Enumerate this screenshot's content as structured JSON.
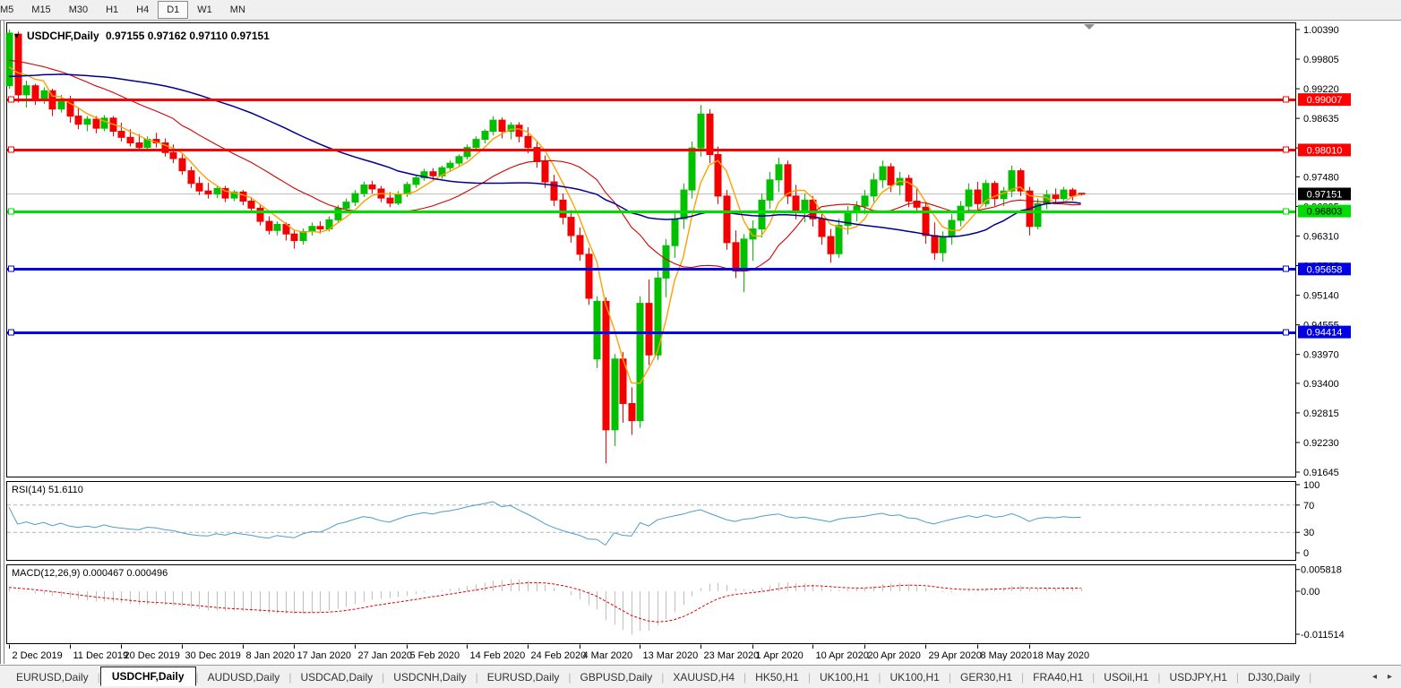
{
  "toolbar": {
    "timeframes": [
      "M5",
      "M15",
      "M30",
      "H1",
      "H4",
      "D1",
      "W1",
      "MN"
    ],
    "active": "D1"
  },
  "chart_header": {
    "arrow": "▼",
    "symbol": "USDCHF,Daily",
    "ohlc": "0.97155 0.97162 0.97110 0.97151"
  },
  "chart_data": {
    "type": "candlestick",
    "symbol": "USDCHF",
    "timeframe": "Daily",
    "ylim": [
      0.91645,
      1.0039
    ],
    "price_ticks": [
      "1.00390",
      "0.99805",
      "0.99220",
      "0.98635",
      "0.98050",
      "0.97480",
      "0.96895",
      "0.96310",
      "0.95725",
      "0.95140",
      "0.94555",
      "0.93970",
      "0.93400",
      "0.92815",
      "0.92230",
      "0.91645"
    ],
    "x_labels": [
      "2 Dec 2019",
      "11 Dec 2019",
      "20 Dec 2019",
      "30 Dec 2019",
      "8 Jan 2020",
      "17 Jan 2020",
      "27 Jan 2020",
      "5 Feb 2020",
      "14 Feb 2020",
      "24 Feb 2020",
      "4 Mar 2020",
      "13 Mar 2020",
      "23 Mar 2020",
      "1 Apr 2020",
      "10 Apr 2020",
      "20 Apr 2020",
      "29 Apr 2020",
      "8 May 2020",
      "18 May 2020"
    ],
    "x_label_indices": [
      0,
      7,
      13,
      20,
      27,
      33,
      40,
      46,
      53,
      60,
      66,
      73,
      80,
      86,
      93,
      99,
      106,
      112,
      118
    ],
    "colors": {
      "up": "#00C000",
      "down": "#F40000",
      "grid_current": "#C0C0C0",
      "frame": "#000000",
      "current_box": "#000000",
      "current_text": "#FFFFFF",
      "shift_marker": "#8C8C8C"
    },
    "hlines": [
      {
        "value": 0.99007,
        "label": "0.99007",
        "color": "#FF0000",
        "text": "#FFFFFF"
      },
      {
        "value": 0.9801,
        "label": "0.98010",
        "color": "#FF0000",
        "text": "#FFFFFF"
      },
      {
        "value": 0.96803,
        "label": "0.96803",
        "color": "#00DD00",
        "text": "#000000"
      },
      {
        "value": 0.95658,
        "label": "0.95658",
        "color": "#0000E6",
        "text": "#FFFFFF"
      },
      {
        "value": 0.94414,
        "label": "0.94414",
        "color": "#0000E6",
        "text": "#FFFFFF"
      }
    ],
    "current_price": {
      "value": 0.97151,
      "label": "0.97151"
    },
    "moving_averages": [
      {
        "period": 5,
        "color": "#FFA000",
        "width": 1.4
      },
      {
        "period": 20,
        "color": "#D50000",
        "width": 1.1
      },
      {
        "period": 45,
        "color": "#000090",
        "width": 1.5
      }
    ],
    "indicators": {
      "rsi": {
        "label": "RSI(14) 51.6110",
        "period": 14,
        "levels": [
          "100",
          "70",
          "30",
          "0"
        ],
        "dashed_levels": [
          70,
          30
        ],
        "line_color": "#4E9BCD"
      },
      "macd": {
        "label": "MACD(12,26,9) 0.000467 0.000496",
        "fast": 12,
        "slow": 26,
        "signal": 9,
        "axis": [
          "0.005818",
          "0.00",
          "-0.011514"
        ],
        "hist_color": "#BFBFBF",
        "signal_color": "#E00000"
      }
    },
    "pre_closes": [
      0.987,
      0.9878,
      0.9885,
      0.9872,
      0.986,
      0.9868,
      0.988,
      0.9892,
      0.9905,
      0.9898,
      0.991,
      0.9922,
      0.9915,
      0.9928,
      0.9935,
      0.9922,
      0.993,
      0.9945,
      0.9938,
      0.9952,
      0.996,
      0.9948,
      0.9955,
      0.9968,
      0.9975,
      0.9962,
      0.997,
      0.9982,
      0.9978,
      0.999,
      0.9985,
      0.9995,
      0.9988,
      0.9998,
      1.0005,
      0.9992,
      0.9985,
      0.9975,
      0.9982,
      0.997,
      0.9958,
      0.9965,
      0.995,
      0.9942,
      0.9935
    ],
    "candles": [
      [
        0.9928,
        1.0039,
        0.9922,
        1.0032
      ],
      [
        1.003,
        1.0035,
        0.9895,
        0.991
      ],
      [
        0.991,
        0.9938,
        0.9885,
        0.9928
      ],
      [
        0.9928,
        0.9932,
        0.989,
        0.99
      ],
      [
        0.99,
        0.9925,
        0.9892,
        0.9918
      ],
      [
        0.9918,
        0.9922,
        0.9868,
        0.9882
      ],
      [
        0.9882,
        0.991,
        0.9875,
        0.9902
      ],
      [
        0.9902,
        0.9908,
        0.9855,
        0.9868
      ],
      [
        0.9868,
        0.9885,
        0.9842,
        0.9852
      ],
      [
        0.9852,
        0.9868,
        0.9838,
        0.9862
      ],
      [
        0.9862,
        0.9868,
        0.9834,
        0.9844
      ],
      [
        0.9844,
        0.987,
        0.9838,
        0.9864
      ],
      [
        0.9864,
        0.9868,
        0.9828,
        0.9838
      ],
      [
        0.9838,
        0.9855,
        0.9818,
        0.9826
      ],
      [
        0.9826,
        0.9842,
        0.9808,
        0.9815
      ],
      [
        0.9815,
        0.9832,
        0.9798,
        0.9806
      ],
      [
        0.9806,
        0.9828,
        0.98,
        0.9822
      ],
      [
        0.9822,
        0.9835,
        0.9806,
        0.9815
      ],
      [
        0.9815,
        0.9824,
        0.9788,
        0.9796
      ],
      [
        0.9796,
        0.9812,
        0.9775,
        0.9784
      ],
      [
        0.9784,
        0.9792,
        0.9752,
        0.976
      ],
      [
        0.976,
        0.9768,
        0.9726,
        0.9735
      ],
      [
        0.9735,
        0.9748,
        0.9712,
        0.972
      ],
      [
        0.972,
        0.9736,
        0.9705,
        0.9714
      ],
      [
        0.9714,
        0.973,
        0.9706,
        0.9725
      ],
      [
        0.9725,
        0.973,
        0.9698,
        0.9706
      ],
      [
        0.9706,
        0.9722,
        0.97,
        0.9718
      ],
      [
        0.9718,
        0.9722,
        0.9692,
        0.97
      ],
      [
        0.97,
        0.9708,
        0.9678,
        0.9686
      ],
      [
        0.9686,
        0.9694,
        0.9652,
        0.966
      ],
      [
        0.966,
        0.967,
        0.9634,
        0.9642
      ],
      [
        0.9642,
        0.966,
        0.9632,
        0.9654
      ],
      [
        0.9654,
        0.9658,
        0.9622,
        0.9635
      ],
      [
        0.9635,
        0.9642,
        0.9606,
        0.9622
      ],
      [
        0.9622,
        0.9646,
        0.9614,
        0.964
      ],
      [
        0.964,
        0.9658,
        0.9632,
        0.965
      ],
      [
        0.965,
        0.966,
        0.9636,
        0.9645
      ],
      [
        0.9645,
        0.967,
        0.964,
        0.9663
      ],
      [
        0.9663,
        0.9692,
        0.9656,
        0.9686
      ],
      [
        0.9686,
        0.9705,
        0.9678,
        0.9698
      ],
      [
        0.9698,
        0.9722,
        0.969,
        0.9715
      ],
      [
        0.9715,
        0.9738,
        0.9708,
        0.9732
      ],
      [
        0.9732,
        0.974,
        0.9715,
        0.9724
      ],
      [
        0.9724,
        0.973,
        0.9698,
        0.9706
      ],
      [
        0.9706,
        0.9718,
        0.9688,
        0.9696
      ],
      [
        0.9696,
        0.972,
        0.9692,
        0.9714
      ],
      [
        0.9714,
        0.9738,
        0.9708,
        0.9733
      ],
      [
        0.9733,
        0.9752,
        0.9726,
        0.9746
      ],
      [
        0.9746,
        0.9764,
        0.974,
        0.9758
      ],
      [
        0.9758,
        0.9765,
        0.9742,
        0.975
      ],
      [
        0.975,
        0.977,
        0.9744,
        0.9766
      ],
      [
        0.9766,
        0.978,
        0.9758,
        0.9775
      ],
      [
        0.9775,
        0.9792,
        0.9768,
        0.9788
      ],
      [
        0.9788,
        0.9812,
        0.9782,
        0.9806
      ],
      [
        0.9806,
        0.9828,
        0.9799,
        0.9822
      ],
      [
        0.9822,
        0.9842,
        0.9814,
        0.9838
      ],
      [
        0.9838,
        0.9868,
        0.983,
        0.986
      ],
      [
        0.986,
        0.9865,
        0.9824,
        0.9838
      ],
      [
        0.9838,
        0.9856,
        0.9822,
        0.985
      ],
      [
        0.985,
        0.9856,
        0.9816,
        0.9828
      ],
      [
        0.9828,
        0.9846,
        0.9795,
        0.9806
      ],
      [
        0.9806,
        0.9818,
        0.9766,
        0.9778
      ],
      [
        0.9778,
        0.979,
        0.9726,
        0.9738
      ],
      [
        0.9738,
        0.9752,
        0.969,
        0.9702
      ],
      [
        0.9702,
        0.9715,
        0.9654,
        0.9668
      ],
      [
        0.9668,
        0.9682,
        0.9618,
        0.9632
      ],
      [
        0.9632,
        0.9648,
        0.9582,
        0.9595
      ],
      [
        0.9595,
        0.9608,
        0.9495,
        0.9508
      ],
      [
        0.9388,
        0.9512,
        0.937,
        0.9502
      ],
      [
        0.9502,
        0.951,
        0.9182,
        0.9248
      ],
      [
        0.9248,
        0.9398,
        0.9216,
        0.9388
      ],
      [
        0.9388,
        0.9402,
        0.9262,
        0.93
      ],
      [
        0.93,
        0.9332,
        0.9238,
        0.9266
      ],
      [
        0.9266,
        0.9512,
        0.9252,
        0.9498
      ],
      [
        0.9498,
        0.9545,
        0.9376,
        0.9396
      ],
      [
        0.9396,
        0.9562,
        0.9386,
        0.9548
      ],
      [
        0.9548,
        0.9625,
        0.951,
        0.9612
      ],
      [
        0.9612,
        0.9682,
        0.9588,
        0.9665
      ],
      [
        0.9665,
        0.9735,
        0.9645,
        0.9722
      ],
      [
        0.9722,
        0.9818,
        0.9705,
        0.9805
      ],
      [
        0.9805,
        0.989,
        0.9788,
        0.9872
      ],
      [
        0.9872,
        0.9882,
        0.9775,
        0.9792
      ],
      [
        0.9792,
        0.9808,
        0.9694,
        0.971
      ],
      [
        0.971,
        0.9722,
        0.9604,
        0.9618
      ],
      [
        0.9618,
        0.9642,
        0.9548,
        0.9562
      ],
      [
        0.9562,
        0.9635,
        0.952,
        0.9625
      ],
      [
        0.9625,
        0.9662,
        0.9582,
        0.9645
      ],
      [
        0.9645,
        0.9715,
        0.9628,
        0.9702
      ],
      [
        0.9702,
        0.9758,
        0.9685,
        0.9742
      ],
      [
        0.9742,
        0.9786,
        0.9718,
        0.9772
      ],
      [
        0.9772,
        0.978,
        0.9694,
        0.971
      ],
      [
        0.971,
        0.9732,
        0.9664,
        0.968
      ],
      [
        0.968,
        0.9715,
        0.9658,
        0.9702
      ],
      [
        0.9702,
        0.971,
        0.965,
        0.9665
      ],
      [
        0.9665,
        0.9678,
        0.9614,
        0.963
      ],
      [
        0.963,
        0.9645,
        0.9578,
        0.9596
      ],
      [
        0.9596,
        0.9665,
        0.9588,
        0.9652
      ],
      [
        0.9652,
        0.969,
        0.9634,
        0.9678
      ],
      [
        0.9678,
        0.97,
        0.966,
        0.969
      ],
      [
        0.969,
        0.9722,
        0.9674,
        0.971
      ],
      [
        0.971,
        0.9755,
        0.9698,
        0.9742
      ],
      [
        0.9742,
        0.978,
        0.9726,
        0.9768
      ],
      [
        0.9768,
        0.9775,
        0.9718,
        0.9732
      ],
      [
        0.9732,
        0.9758,
        0.9712,
        0.9745
      ],
      [
        0.9745,
        0.9752,
        0.9688,
        0.97
      ],
      [
        0.97,
        0.9725,
        0.9678,
        0.9688
      ],
      [
        0.9688,
        0.9698,
        0.9616,
        0.9632
      ],
      [
        0.9632,
        0.9658,
        0.9584,
        0.9598
      ],
      [
        0.9598,
        0.964,
        0.958,
        0.963
      ],
      [
        0.963,
        0.9675,
        0.9614,
        0.9662
      ],
      [
        0.9662,
        0.97,
        0.965,
        0.969
      ],
      [
        0.969,
        0.9735,
        0.9678,
        0.9722
      ],
      [
        0.9722,
        0.9738,
        0.9682,
        0.9695
      ],
      [
        0.9695,
        0.9742,
        0.9688,
        0.9735
      ],
      [
        0.9735,
        0.974,
        0.969,
        0.9705
      ],
      [
        0.9705,
        0.9728,
        0.969,
        0.972
      ],
      [
        0.972,
        0.977,
        0.9708,
        0.976
      ],
      [
        0.976,
        0.9765,
        0.971,
        0.972
      ],
      [
        0.972,
        0.9728,
        0.9632,
        0.965
      ],
      [
        0.965,
        0.9705,
        0.9644,
        0.9695
      ],
      [
        0.9695,
        0.9722,
        0.9684,
        0.9712
      ],
      [
        0.9712,
        0.9725,
        0.9698,
        0.9705
      ],
      [
        0.9705,
        0.9728,
        0.97,
        0.9722
      ],
      [
        0.9722,
        0.9726,
        0.9701,
        0.971
      ],
      [
        0.97155,
        0.97162,
        0.9711,
        0.97151
      ]
    ]
  },
  "tabs": {
    "items": [
      "EURUSD,Daily",
      "USDCHF,Daily",
      "AUDUSD,Daily",
      "USDCAD,Daily",
      "USDCNH,Daily",
      "EURUSD,Daily",
      "GBPUSD,Daily",
      "XAUUSD,H4",
      "HK50,H1",
      "UK100,H1",
      "UK100,H1",
      "GER30,H1",
      "FRA40,H1",
      "USOil,H1",
      "USDJPY,H1",
      "DJ30,Daily"
    ],
    "active_index": 1,
    "scroll_left": "◂",
    "scroll_right": "▸"
  }
}
